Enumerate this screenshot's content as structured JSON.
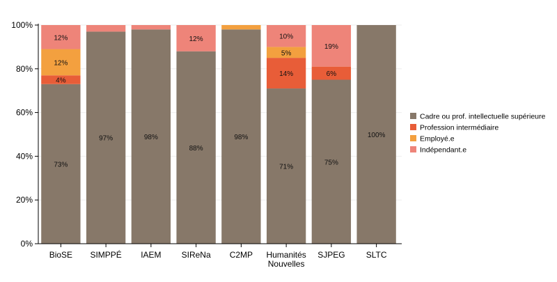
{
  "chart_data": {
    "type": "bar",
    "stacked": true,
    "title": "",
    "xlabel": "",
    "ylabel": "",
    "ylim": [
      0,
      100
    ],
    "yticks": [
      "0%",
      "20%",
      "40%",
      "60%",
      "80%",
      "100%"
    ],
    "grid": true,
    "legend_position": "right",
    "categories": [
      "BioSE",
      "SIMPPÉ",
      "IAEM",
      "SIReNa",
      "C2MP",
      "Humanités\nNouvelles",
      "SJPEG",
      "SLTC"
    ],
    "series": [
      {
        "name": "Cadre ou prof. intellectuelle supérieure",
        "color": "#877869",
        "values": [
          73,
          97,
          98,
          88,
          98,
          71,
          75,
          100
        ]
      },
      {
        "name": "Profession intermédiaire",
        "color": "#e85d38",
        "values": [
          4,
          0,
          0,
          0,
          0,
          14,
          6,
          0
        ]
      },
      {
        "name": "Employé.e",
        "color": "#f3a03f",
        "values": [
          12,
          0,
          0,
          0,
          2,
          5,
          0,
          0
        ]
      },
      {
        "name": "Indépendant.e",
        "color": "#ee8479",
        "values": [
          12,
          3,
          2,
          12,
          0,
          10,
          19,
          0
        ]
      }
    ],
    "data_labels": [
      [
        "73%",
        "97%",
        "98%",
        "88%",
        "98%",
        "71%",
        "75%",
        "100%"
      ],
      [
        "4%",
        "",
        "",
        "",
        "",
        "14%",
        "6%",
        ""
      ],
      [
        "12%",
        "",
        "",
        "",
        "",
        "5%",
        "",
        ""
      ],
      [
        "12%",
        "",
        "",
        "12%",
        "",
        "10%",
        "19%",
        ""
      ]
    ]
  }
}
